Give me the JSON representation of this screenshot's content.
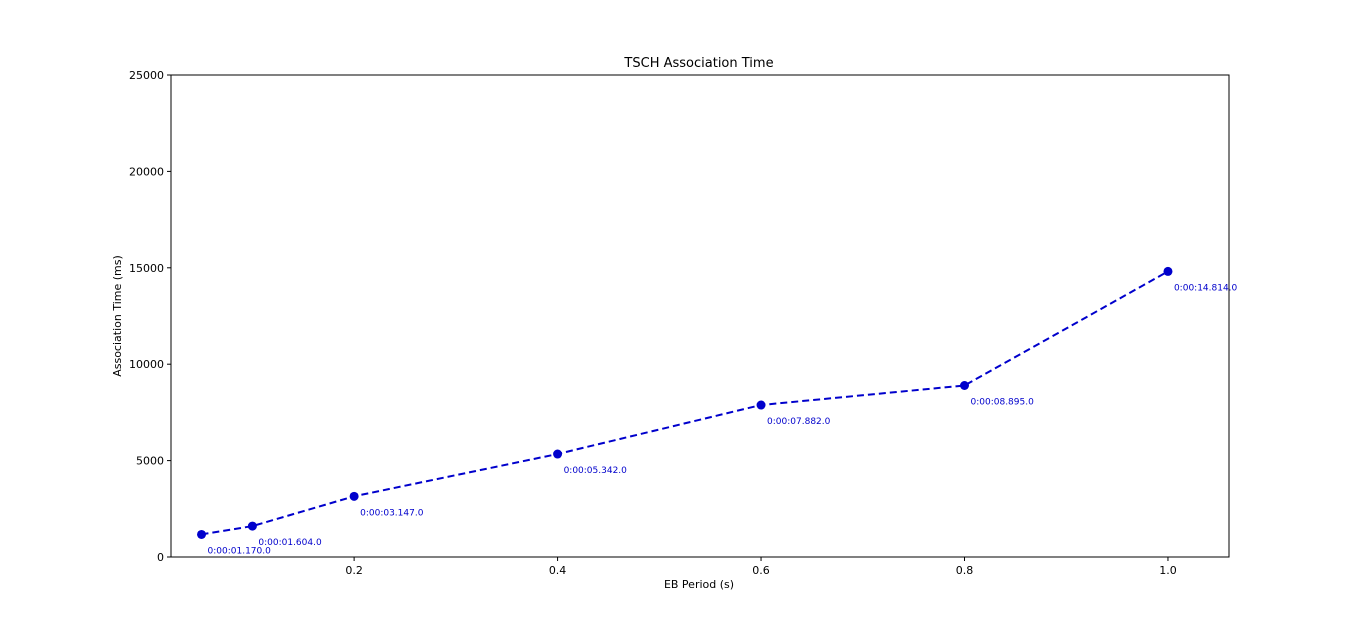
{
  "chart_data": {
    "type": "line",
    "title": "TSCH Association Time",
    "xlabel": "EB Period (s)",
    "ylabel": "Association Time (ms)",
    "xlim": [
      0.02,
      1.06
    ],
    "ylim": [
      0,
      25000
    ],
    "x_ticks": [
      0.2,
      0.4,
      0.6,
      0.8,
      1.0
    ],
    "x_tick_labels": [
      "0.2",
      "0.4",
      "0.6",
      "0.8",
      "1.0"
    ],
    "y_ticks": [
      0,
      5000,
      10000,
      15000,
      20000,
      25000
    ],
    "y_tick_labels": [
      "0",
      "5000",
      "10000",
      "15000",
      "20000",
      "25000"
    ],
    "grid": false,
    "series": [
      {
        "color": "#0000cc",
        "line_style": "dashed",
        "marker": "circle",
        "x": [
          0.05,
          0.1,
          0.2,
          0.4,
          0.6,
          0.8,
          1.0
        ],
        "y": [
          1170,
          1604,
          3147,
          5342,
          7882,
          8895,
          14814
        ],
        "labels": [
          "0:00:01.170.0",
          "0:00:01.604.0",
          "0:00:03.147.0",
          "0:00:05.342.0",
          "0:00:07.882.0",
          "0:00:08.895.0",
          "0:00:14.814.0"
        ]
      }
    ]
  }
}
